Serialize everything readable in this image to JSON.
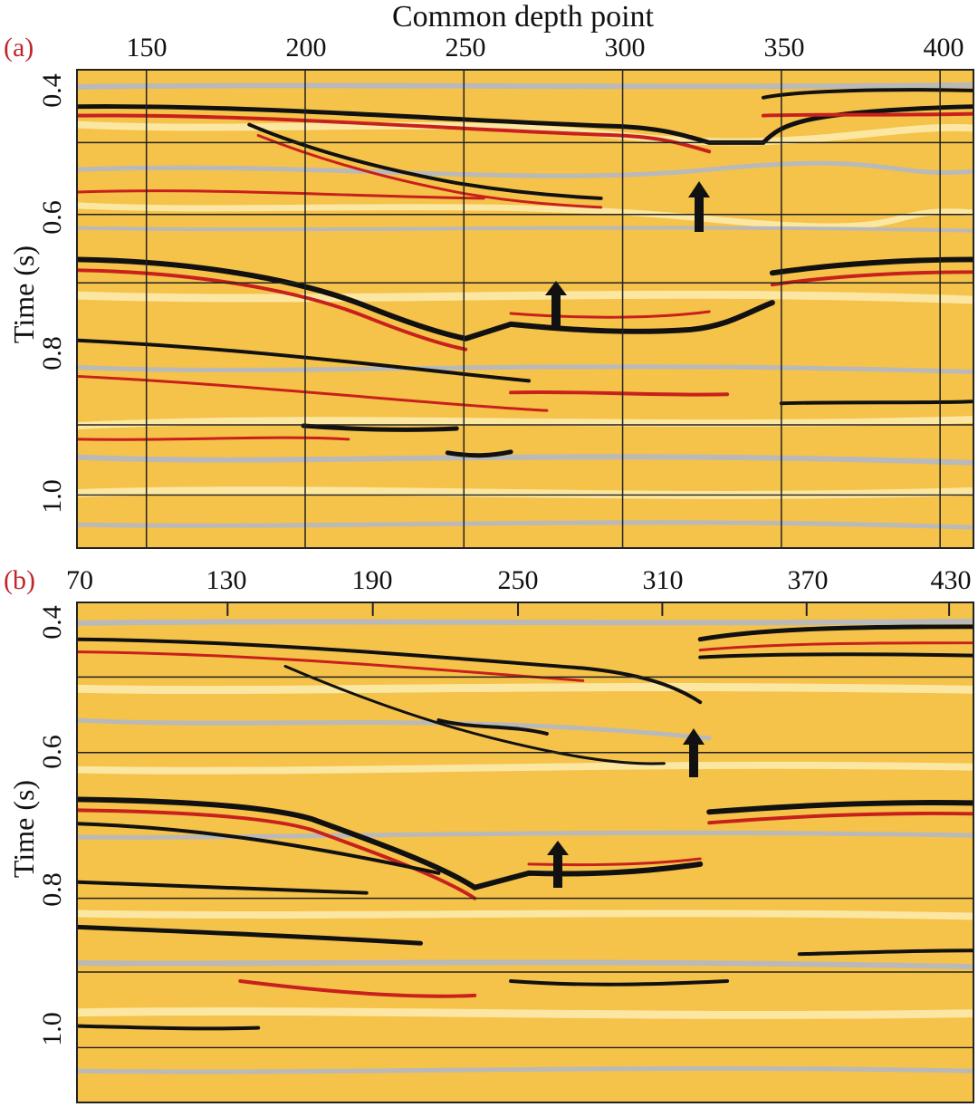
{
  "figure": {
    "title": "Common depth point",
    "panel_a": {
      "label": "(a)",
      "x_ticks": [
        "150",
        "200",
        "250",
        "300",
        "350",
        "400"
      ],
      "y_ticks": [
        "0.4",
        "0.6",
        "0.8",
        "1.0"
      ],
      "y_axis_label": "Time (s)"
    },
    "panel_b": {
      "label": "(b)",
      "x_ticks": [
        "70",
        "130",
        "190",
        "250",
        "310",
        "370",
        "430"
      ],
      "y_ticks": [
        "0.4",
        "0.6",
        "0.8",
        "1.0"
      ],
      "y_axis_label": "Time (s)"
    },
    "colors": {
      "background": "#f5c24a",
      "light_band": "#fbe7a2",
      "gray_band": "#b9b9b9",
      "dark_horizon": "#111111",
      "red_horizon": "#c8201c",
      "grid": "#222222",
      "arrow": "#111111"
    },
    "icons": [
      "arrow-up-icon",
      "arrow-up-icon"
    ]
  }
}
